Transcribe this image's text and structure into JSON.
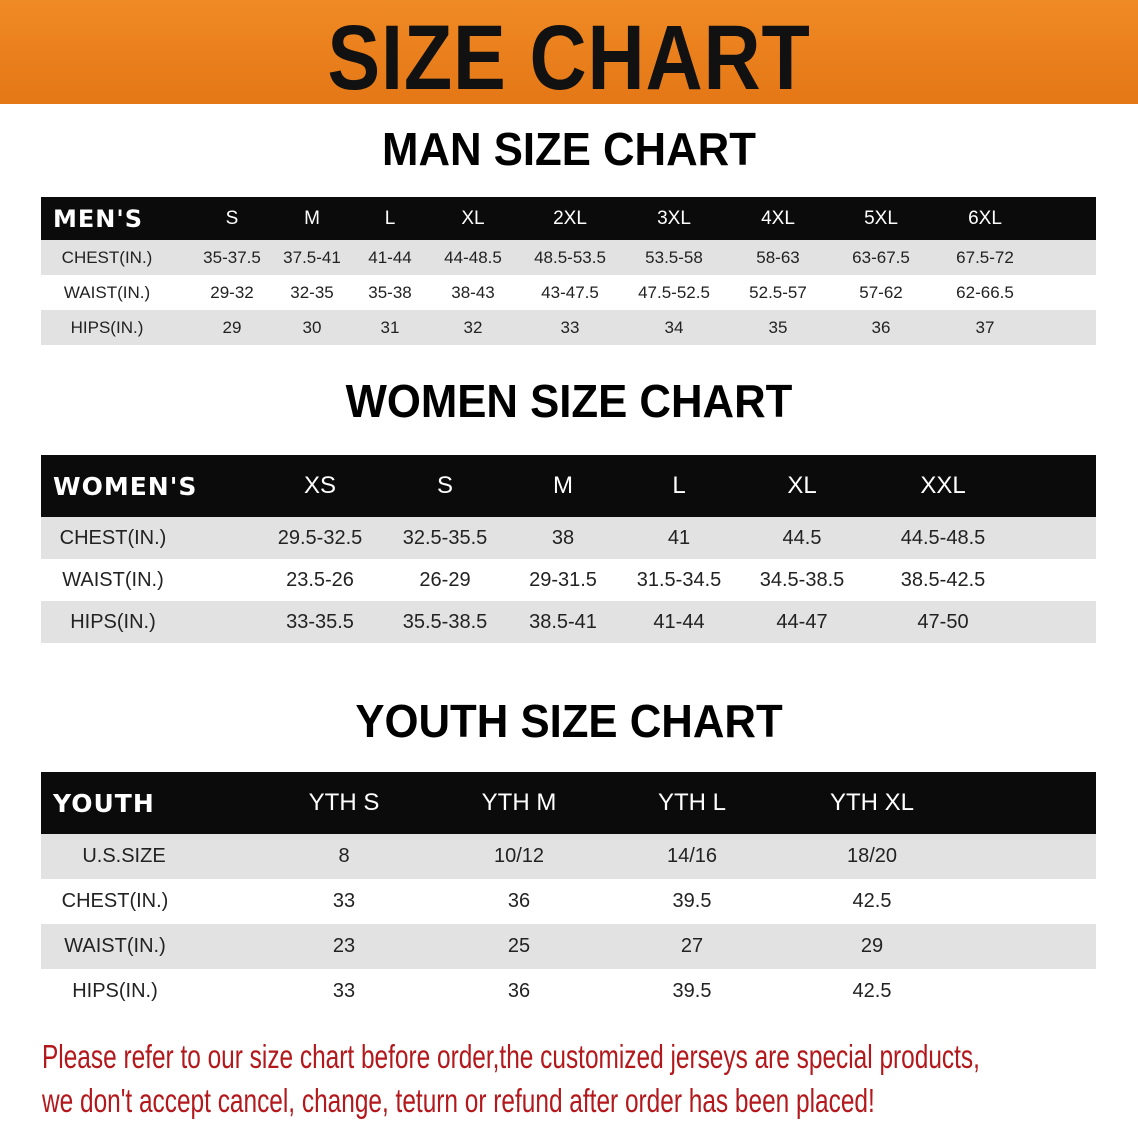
{
  "banner": {
    "title": "SIZE CHART",
    "color": "#e87d1a"
  },
  "men": {
    "title": "MAN SIZE CHART",
    "header": [
      "MEN'S",
      "S",
      "M",
      "L",
      "XL",
      "2XL",
      "3XL",
      "4XL",
      "5XL",
      "6XL"
    ],
    "rows": [
      [
        "CHEST(IN.)",
        "35-37.5",
        "37.5-41",
        "41-44",
        "44-48.5",
        "48.5-53.5",
        "53.5-58",
        "58-63",
        "63-67.5",
        "67.5-72"
      ],
      [
        "WAIST(IN.)",
        "29-32",
        "32-35",
        "35-38",
        "38-43",
        "43-47.5",
        "47.5-52.5",
        "52.5-57",
        "57-62",
        "62-66.5"
      ],
      [
        "HIPS(IN.)",
        "29",
        "30",
        "31",
        "32",
        "33",
        "34",
        "35",
        "36",
        "37"
      ]
    ]
  },
  "women": {
    "title": "WOMEN SIZE CHART",
    "header": [
      "WOMEN'S",
      "XS",
      "S",
      "M",
      "L",
      "XL",
      "XXL"
    ],
    "rows": [
      [
        "CHEST(IN.)",
        "29.5-32.5",
        "32.5-35.5",
        "38",
        "41",
        "44.5",
        "44.5-48.5"
      ],
      [
        "WAIST(IN.)",
        "23.5-26",
        "26-29",
        "29-31.5",
        "31.5-34.5",
        "34.5-38.5",
        "38.5-42.5"
      ],
      [
        "HIPS(IN.)",
        "33-35.5",
        "35.5-38.5",
        "38.5-41",
        "41-44",
        "44-47",
        "47-50"
      ]
    ]
  },
  "youth": {
    "title": "YOUTH SIZE CHART",
    "header": [
      "YOUTH",
      "YTH S",
      "YTH M",
      "YTH L",
      "YTH XL"
    ],
    "rows": [
      [
        "U.S.SIZE",
        "8",
        "10/12",
        "14/16",
        "18/20"
      ],
      [
        "CHEST(IN.)",
        "33",
        "36",
        "39.5",
        "42.5"
      ],
      [
        "WAIST(IN.)",
        "23",
        "25",
        "27",
        "29"
      ],
      [
        "HIPS(IN.)",
        "33",
        "36",
        "39.5",
        "42.5"
      ]
    ]
  },
  "note": {
    "line1": "Please refer to our size chart before order,the customized jerseys are special products,",
    "line2": "we don't accept cancel, change, teturn or refund after order has been placed!",
    "color": "#b3191c"
  }
}
